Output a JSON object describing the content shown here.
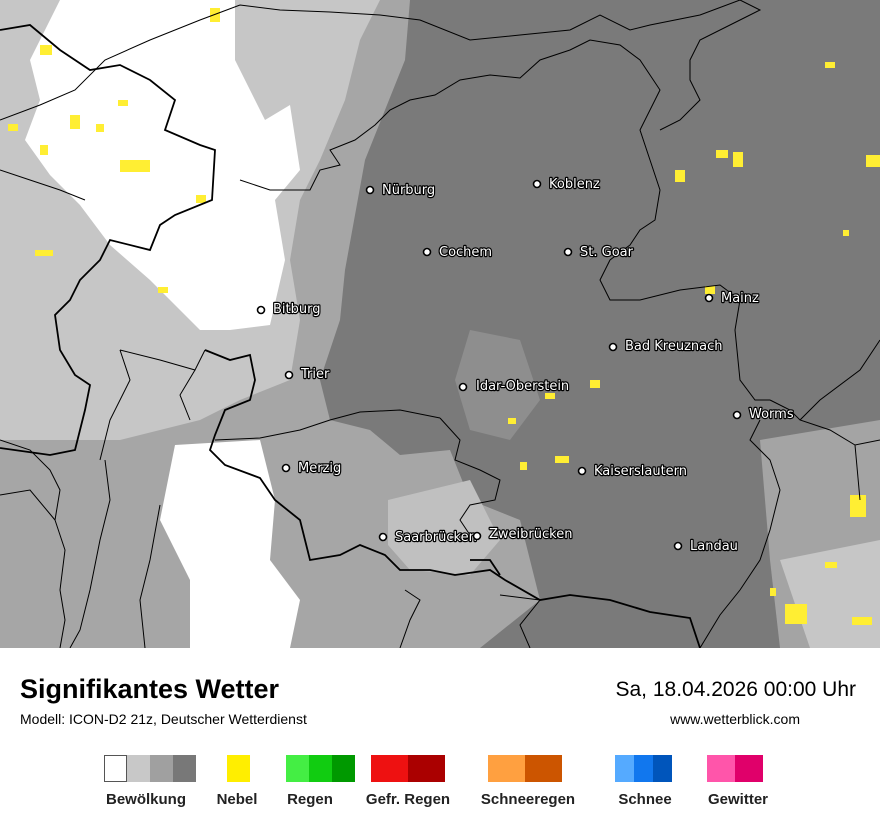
{
  "map": {
    "cities": [
      {
        "name": "Nürburg"
      },
      {
        "name": "Koblenz"
      },
      {
        "name": "Cochem"
      },
      {
        "name": "St. Goar"
      },
      {
        "name": "Mainz"
      },
      {
        "name": "Bitburg"
      },
      {
        "name": "Bad Kreuznach"
      },
      {
        "name": "Trier"
      },
      {
        "name": "Idar-Oberstein"
      },
      {
        "name": "Worms"
      },
      {
        "name": "Merzig"
      },
      {
        "name": "Kaiserslautern"
      },
      {
        "name": "Saarbrücken"
      },
      {
        "name": "Zweibrücken"
      },
      {
        "name": "Landau"
      }
    ]
  },
  "footer": {
    "title": "Signifikantes Wetter",
    "model": "Modell: ICON-D2 21z, Deutscher Wetterdienst",
    "datetime": "Sa, 18.04.2026 00:00 Uhr",
    "website": "www.wetterblick.com"
  },
  "legend": [
    {
      "label": "Bewölkung",
      "colors": [
        "#ffffff",
        "#c8c8c8",
        "#a0a0a0",
        "#787878"
      ]
    },
    {
      "label": "Nebel",
      "colors": [
        "#ffee00"
      ]
    },
    {
      "label": "Regen",
      "colors": [
        "#44ee44",
        "#11cc11",
        "#009900"
      ]
    },
    {
      "label": "Gefr. Regen",
      "colors": [
        "#ee1111",
        "#aa0000"
      ]
    },
    {
      "label": "Schneeregen",
      "colors": [
        "#ffa040",
        "#cc5500"
      ]
    },
    {
      "label": "Schnee",
      "colors": [
        "#55aaff",
        "#1177ee",
        "#0055bb"
      ]
    },
    {
      "label": "Gewitter",
      "colors": [
        "#ff55aa",
        "#e0006a"
      ]
    }
  ]
}
